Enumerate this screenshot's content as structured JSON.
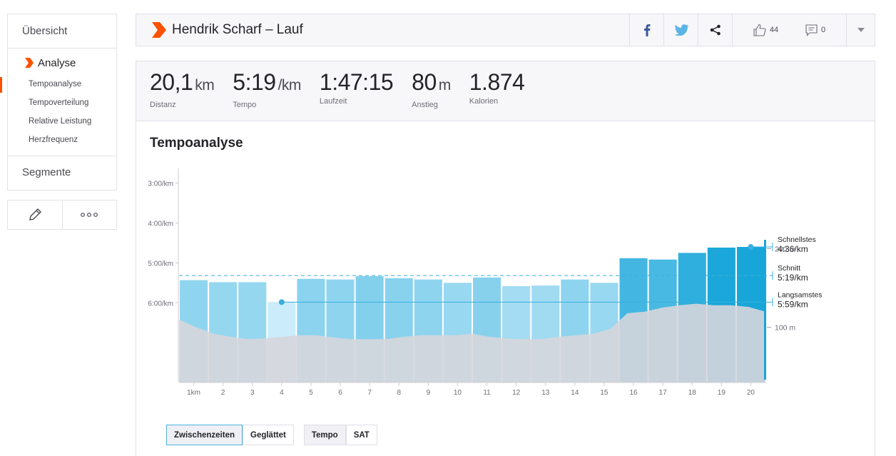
{
  "sidebar": {
    "overview": "Übersicht",
    "analysis": "Analyse",
    "sub_items": [
      "Tempoanalyse",
      "Tempoverteilung",
      "Relative Leistung",
      "Herzfrequenz"
    ],
    "segments": "Segmente"
  },
  "header": {
    "title": "Hendrik Scharf – Lauf",
    "kudos_count": "44",
    "comment_count": "0"
  },
  "stats": [
    {
      "value": "20,1",
      "unit": "km",
      "label": "Distanz"
    },
    {
      "value": "5:19",
      "unit": "/km",
      "label": "Tempo"
    },
    {
      "value": "1:47:15",
      "unit": "",
      "label": "Laufzeit"
    },
    {
      "value": "80",
      "unit": "m",
      "label": "Anstieg"
    },
    {
      "value": "1.874",
      "unit": "",
      "label": "Kalorien"
    }
  ],
  "colors": {
    "accent": "#fc5200",
    "bar_fast": "#18a6d9",
    "bar_slow": "#cbecfa",
    "elevation": "#d6d6db"
  },
  "chart_data": {
    "type": "bar",
    "title": "Tempoanalyse",
    "x_tick_labels": [
      "1km",
      "2",
      "3",
      "4",
      "5",
      "6",
      "7",
      "8",
      "9",
      "10",
      "11",
      "12",
      "13",
      "14",
      "15",
      "16",
      "17",
      "18",
      "19",
      "20"
    ],
    "y_tick_labels": [
      "3:00/km",
      "4:00/km",
      "5:00/km",
      "6:00/km"
    ],
    "y_tick_seconds": [
      180,
      240,
      300,
      360
    ],
    "pace_seconds_per_km": [
      326,
      329,
      329,
      359,
      324,
      325,
      320,
      323,
      325,
      330,
      322,
      335,
      334,
      325,
      330,
      293,
      295,
      285,
      277,
      276
    ],
    "ylim_seconds": [
      160,
      480
    ],
    "elevation_ticks": [
      "200 m",
      "100 m"
    ],
    "elevation_tick_values": [
      200,
      100
    ],
    "elevation_range_m": [
      30,
      300
    ],
    "elevation_profile_m": [
      110,
      100,
      92,
      88,
      85,
      86,
      88,
      90,
      90,
      87,
      85,
      85,
      85,
      88,
      90,
      90,
      90,
      92,
      88,
      86,
      85,
      85,
      88,
      90,
      92,
      98,
      118,
      120,
      125,
      128,
      130,
      128,
      128,
      126,
      120
    ],
    "markers": {
      "fastest": {
        "label": "Schnellstes",
        "value": "4:36/km",
        "seconds": 276,
        "km_index": 19
      },
      "average": {
        "label": "Schnitt",
        "value": "5:19/km",
        "seconds": 319
      },
      "slowest": {
        "label": "Langsamstes",
        "value": "5:59/km",
        "seconds": 359,
        "km_index": 3
      }
    }
  },
  "buttons": {
    "splits": "Zwischenzeiten",
    "smoothed": "Geglättet",
    "pace": "Tempo",
    "gap": "SAT"
  }
}
